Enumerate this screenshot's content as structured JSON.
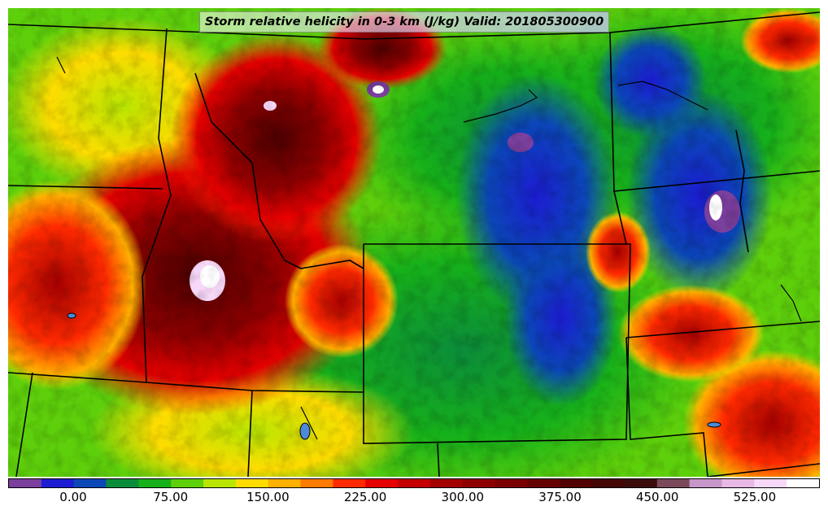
{
  "title": "Storm relative helicity in 0-3 km (J/kg) Valid: 201805300900",
  "colorbar": {
    "colors": [
      "#7b3f9e",
      "#1c1cd2",
      "#0b47b7",
      "#0b8c3a",
      "#16b11a",
      "#5ed00b",
      "#b8e600",
      "#ffdc00",
      "#ffb000",
      "#ff7a00",
      "#ff2a00",
      "#e50000",
      "#c40000",
      "#a30000",
      "#8e0000",
      "#7a0000",
      "#650000",
      "#520000",
      "#450606",
      "#3b0c0c",
      "#7a4a5a",
      "#c896c8",
      "#e8b8e6",
      "#f8d8f8",
      "#ffffff"
    ],
    "tick_labels": [
      "0.00",
      "75.00",
      "150.00",
      "225.00",
      "300.00",
      "375.00",
      "450.00",
      "525.00"
    ]
  }
}
